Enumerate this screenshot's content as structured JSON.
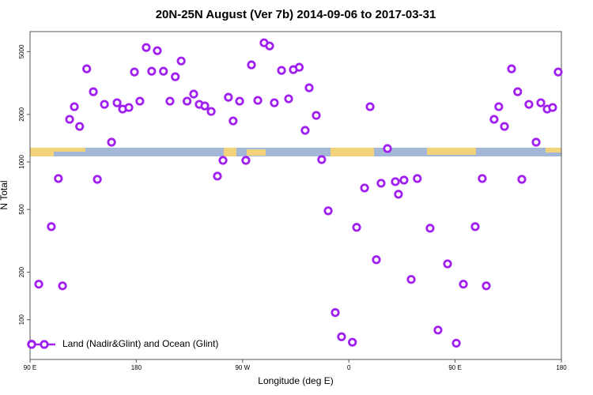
{
  "chart_data": {
    "type": "scatter",
    "title": "20N-25N August (Ver 7b)   2014-09-06 to 2017-03-31",
    "x_label": "Longitude (deg E)",
    "y_label": "N Total",
    "y_scale": "log",
    "legend_position": "bottom-left",
    "xlim": [
      90,
      540
    ],
    "ylim": [
      56,
      6700
    ],
    "xticks": [
      {
        "value": 90,
        "label": "90 E"
      },
      180,
      {
        "value": 270,
        "label": "90 W"
      },
      {
        "value": 360,
        "label": "0"
      },
      {
        "value": 450,
        "label": "90 E"
      },
      {
        "value": 540,
        "label": "180"
      }
    ],
    "yticks": [
      100,
      200,
      500,
      1000,
      2000,
      5000
    ],
    "series": [
      {
        "name": "Land (Nadir&Glint) and Ocean (Glint)",
        "color": "#a020f0",
        "x": [
          91.3,
          97.4,
          108,
          114,
          117.5,
          123.5,
          127.5,
          132,
          138,
          143.6,
          147,
          153,
          159,
          163.7,
          168.4,
          173.7,
          178.4,
          183,
          188.4,
          193,
          197.8,
          203,
          208.5,
          213,
          218,
          223,
          228.6,
          233.3,
          238,
          243.4,
          248.7,
          253.4,
          258,
          262,
          267.5,
          272.8,
          277.5,
          282.9,
          288.2,
          292.9,
          296.9,
          303,
          309,
          313,
          318,
          323,
          326.4,
          332.4,
          337,
          342.5,
          348.5,
          353.8,
          363,
          366.6,
          373.3,
          378,
          383.3,
          387.3,
          392.7,
          399.4,
          402,
          406.7,
          412.8,
          418,
          428.8,
          435.5,
          443.6,
          451,
          457,
          467,
          473,
          476.4,
          483,
          487,
          491.8,
          497.8,
          503,
          506.5,
          512.5,
          518.6,
          522.6,
          528,
          532.6,
          537.3
        ],
        "values": [
          70,
          168,
          389,
          785,
          164,
          1862,
          2239,
          1679,
          3890,
          2786,
          776,
          2317,
          1334,
          2371,
          2163,
          2213,
          3715,
          2427,
          5309,
          3758,
          5070,
          3758,
          2427,
          3467,
          4365,
          2427,
          2692,
          2317,
          2264,
          2089,
          813,
          1023,
          2570,
          1820,
          2427,
          1023,
          4121,
          2455,
          5689,
          5433,
          2371,
          3802,
          2512,
          3846,
          3981,
          1585,
          2951,
          1972,
          1035,
          490,
          111,
          78,
          72,
          385,
          684,
          2239,
          240,
          733,
          1216,
          750,
          624,
          767,
          180,
          785,
          380,
          86,
          226,
          71,
          168,
          389,
          785,
          164,
          1862,
          2239,
          1679,
          3890,
          2786,
          776,
          2317,
          1334,
          2371,
          2163,
          2213,
          3715
        ]
      }
    ]
  }
}
